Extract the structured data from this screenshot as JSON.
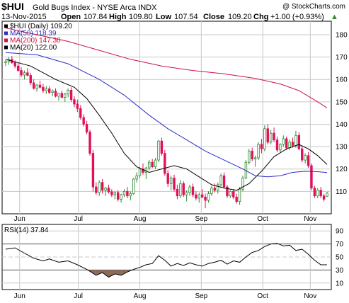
{
  "header": {
    "symbol": "$HUI",
    "name": "Gold Bugs Index - NYSE Arca INDX",
    "credit": "@ StockCharts.com",
    "date": "13-Nov-2015",
    "open_label": "Open",
    "open": "107.84",
    "high_label": "High",
    "high": "109.80",
    "low_label": "Low",
    "low": "107.54",
    "close_label": "Close",
    "close": "109.20",
    "chg_label": "Chg",
    "chg": "+1.00 (+0.93%)",
    "chg_arrow": "▲"
  },
  "colors": {
    "up": "#2e8b2e",
    "down": "#e0105a",
    "ma50": "#2b2bc8",
    "ma200": "#d01040",
    "ma20": "#000000",
    "grid": "#c8c8c8",
    "rsi_line": "#000000",
    "rsi_fill": "#8b6a5a"
  },
  "legend": [
    {
      "label": "$HUI (Daily) 109.20",
      "color": "#000000"
    },
    {
      "label": "MA(50) 118.39",
      "color": "#2b2bc8"
    },
    {
      "label": "MA(200) 147.30",
      "color": "#d01040"
    },
    {
      "label": "MA(20) 122.00",
      "color": "#000000"
    }
  ],
  "price_axis": {
    "labels": [
      "110",
      "120",
      "130",
      "140",
      "150",
      "160",
      "170",
      "180"
    ]
  },
  "rsi_panel": {
    "label": "RSI(14) 37.84",
    "axis_labels": [
      "10",
      "30",
      "50",
      "70",
      "90"
    ]
  },
  "month_labels": [
    "Jun",
    "Jul",
    "Aug",
    "Sep",
    "Oct",
    "Nov"
  ],
  "chart_data": [
    {
      "type": "candlestick",
      "title": "$HUI (Daily) 109.20",
      "ylim": [
        100,
        186
      ],
      "x": [
        "Jun",
        "Jul",
        "Aug",
        "Sep",
        "Oct",
        "Nov"
      ],
      "ohlc": [
        [
          167.5,
          169.0,
          166.0,
          168.0
        ],
        [
          168.0,
          170.0,
          166.5,
          169.0
        ],
        [
          169.0,
          170.5,
          167.0,
          167.5
        ],
        [
          167.5,
          168.5,
          165.0,
          166.0
        ],
        [
          166.0,
          167.5,
          163.5,
          164.0
        ],
        [
          164.0,
          165.5,
          161.0,
          162.0
        ],
        [
          162.0,
          164.0,
          160.0,
          163.0
        ],
        [
          163.0,
          165.0,
          161.5,
          161.8
        ],
        [
          161.8,
          163.0,
          157.5,
          158.5
        ],
        [
          158.5,
          160.0,
          155.5,
          156.0
        ],
        [
          156.0,
          158.0,
          154.5,
          157.5
        ],
        [
          157.5,
          159.5,
          156.0,
          156.5
        ],
        [
          156.5,
          158.0,
          154.0,
          155.0
        ],
        [
          155.0,
          157.0,
          153.5,
          155.8
        ],
        [
          155.8,
          157.0,
          153.5,
          154.2
        ],
        [
          154.2,
          155.5,
          152.5,
          154.8
        ],
        [
          154.8,
          156.0,
          152.0,
          152.5
        ],
        [
          152.5,
          154.0,
          150.5,
          153.8
        ],
        [
          153.8,
          155.0,
          151.5,
          152.0
        ],
        [
          152.0,
          154.0,
          150.0,
          153.5
        ],
        [
          153.5,
          156.0,
          152.0,
          155.2
        ],
        [
          155.2,
          156.5,
          150.0,
          151.0
        ],
        [
          151.0,
          152.5,
          147.5,
          149.0
        ],
        [
          149.0,
          151.0,
          145.5,
          147.0
        ],
        [
          147.0,
          148.5,
          142.0,
          143.0
        ],
        [
          143.0,
          144.5,
          139.0,
          140.0
        ],
        [
          140.0,
          141.5,
          135.5,
          136.5
        ],
        [
          136.5,
          137.5,
          126.0,
          127.0
        ],
        [
          127.0,
          128.5,
          110.0,
          112.0
        ],
        [
          112.0,
          114.0,
          108.5,
          109.5
        ],
        [
          109.5,
          115.0,
          108.0,
          114.0
        ],
        [
          114.0,
          115.5,
          109.0,
          110.5
        ],
        [
          110.5,
          112.0,
          108.0,
          111.5
        ],
        [
          111.5,
          113.0,
          109.0,
          109.8
        ],
        [
          109.8,
          111.0,
          107.5,
          108.5
        ],
        [
          108.5,
          110.0,
          106.5,
          109.5
        ],
        [
          109.5,
          110.5,
          105.5,
          106.5
        ],
        [
          106.5,
          109.0,
          105.0,
          108.5
        ],
        [
          108.5,
          111.0,
          107.5,
          110.0
        ],
        [
          110.0,
          112.0,
          107.0,
          108.0
        ],
        [
          108.0,
          110.0,
          106.0,
          109.0
        ],
        [
          109.0,
          116.0,
          108.5,
          115.5
        ],
        [
          115.5,
          118.5,
          114.0,
          117.0
        ],
        [
          117.0,
          121.0,
          116.0,
          120.0
        ],
        [
          120.0,
          122.5,
          117.5,
          118.5
        ],
        [
          118.5,
          121.0,
          115.5,
          120.5
        ],
        [
          120.5,
          124.0,
          119.5,
          123.0
        ],
        [
          123.0,
          124.5,
          120.5,
          121.0
        ],
        [
          121.0,
          125.0,
          120.0,
          124.0
        ],
        [
          124.0,
          133.0,
          123.0,
          132.5
        ],
        [
          132.5,
          134.0,
          126.0,
          127.0
        ],
        [
          127.0,
          128.5,
          117.0,
          118.0
        ],
        [
          118.0,
          119.5,
          112.0,
          113.5
        ],
        [
          113.5,
          117.0,
          110.5,
          116.0
        ],
        [
          116.0,
          117.5,
          110.0,
          111.0
        ],
        [
          111.0,
          113.0,
          106.5,
          108.0
        ],
        [
          108.0,
          115.0,
          107.0,
          113.5
        ],
        [
          113.5,
          114.5,
          107.5,
          108.5
        ],
        [
          108.5,
          110.5,
          105.5,
          109.5
        ],
        [
          109.5,
          113.0,
          108.0,
          112.0
        ],
        [
          112.0,
          113.5,
          107.5,
          108.5
        ],
        [
          108.5,
          110.0,
          106.0,
          107.0
        ],
        [
          107.0,
          109.5,
          105.0,
          108.5
        ],
        [
          108.5,
          111.0,
          107.0,
          107.5
        ],
        [
          107.5,
          109.0,
          102.5,
          106.0
        ],
        [
          106.0,
          110.0,
          105.0,
          109.0
        ],
        [
          109.0,
          112.5,
          108.0,
          111.5
        ],
        [
          111.5,
          113.5,
          109.5,
          110.5
        ],
        [
          110.5,
          114.0,
          109.0,
          113.0
        ],
        [
          113.0,
          118.0,
          112.0,
          117.0
        ],
        [
          117.0,
          118.5,
          111.5,
          112.0
        ],
        [
          112.0,
          113.0,
          107.0,
          108.0
        ],
        [
          108.0,
          110.5,
          107.0,
          110.0
        ],
        [
          110.0,
          111.0,
          106.5,
          107.5
        ],
        [
          107.5,
          109.0,
          104.5,
          105.5
        ],
        [
          105.5,
          112.0,
          104.0,
          111.0
        ],
        [
          111.0,
          117.0,
          110.0,
          116.0
        ],
        [
          116.0,
          124.0,
          115.5,
          123.0
        ],
        [
          123.0,
          129.0,
          122.0,
          128.0
        ],
        [
          128.0,
          129.5,
          123.5,
          124.5
        ],
        [
          124.5,
          126.0,
          121.0,
          125.0
        ],
        [
          125.0,
          132.0,
          124.0,
          131.0
        ],
        [
          131.0,
          133.5,
          127.0,
          129.0
        ],
        [
          129.0,
          139.5,
          128.0,
          138.0
        ],
        [
          138.0,
          140.0,
          131.0,
          132.0
        ],
        [
          132.0,
          137.5,
          131.0,
          136.0
        ],
        [
          136.0,
          138.5,
          132.0,
          133.0
        ],
        [
          133.0,
          134.5,
          127.5,
          128.5
        ],
        [
          128.5,
          131.5,
          127.5,
          131.0
        ],
        [
          131.0,
          135.0,
          130.0,
          133.5
        ],
        [
          133.5,
          134.5,
          128.5,
          129.5
        ],
        [
          129.5,
          133.0,
          128.5,
          132.0
        ],
        [
          132.0,
          134.0,
          129.5,
          130.5
        ],
        [
          130.5,
          137.0,
          129.5,
          135.0
        ],
        [
          135.0,
          136.5,
          128.5,
          129.0
        ],
        [
          129.0,
          130.5,
          123.0,
          124.0
        ],
        [
          124.0,
          127.0,
          122.5,
          126.0
        ],
        [
          126.0,
          127.5,
          120.5,
          121.5
        ],
        [
          121.5,
          122.5,
          110.5,
          111.5
        ],
        [
          111.5,
          112.5,
          107.0,
          108.0
        ],
        [
          108.0,
          111.5,
          107.0,
          110.5
        ],
        [
          110.5,
          112.0,
          107.0,
          108.0
        ],
        [
          108.0,
          109.0,
          105.5,
          106.5
        ],
        [
          107.84,
          109.8,
          107.54,
          109.2
        ]
      ],
      "series": [
        {
          "name": "MA(20) 122.00",
          "values": [
            [
              0,
              169.0
            ],
            [
              8,
              166.0
            ],
            [
              16,
              160.0
            ],
            [
              22,
              156.5
            ],
            [
              26,
              151.5
            ],
            [
              30,
              144.0
            ],
            [
              34,
              136.0
            ],
            [
              38,
              127.0
            ],
            [
              42,
              121.0
            ],
            [
              46,
              118.5
            ],
            [
              50,
              120.0
            ],
            [
              54,
              121.5
            ],
            [
              58,
              120.0
            ],
            [
              62,
              116.5
            ],
            [
              66,
              113.0
            ],
            [
              70,
              111.5
            ],
            [
              74,
              110.5
            ],
            [
              78,
              113.5
            ],
            [
              82,
              119.0
            ],
            [
              86,
              125.5
            ],
            [
              90,
              129.0
            ],
            [
              94,
              131.0
            ],
            [
              97,
              129.0
            ],
            [
              100,
              126.0
            ],
            [
              103,
              122.0
            ]
          ]
        },
        {
          "name": "MA(50) 118.39",
          "values": [
            [
              0,
              172.0
            ],
            [
              10,
              171.0
            ],
            [
              20,
              167.0
            ],
            [
              30,
              160.0
            ],
            [
              38,
              153.0
            ],
            [
              46,
              144.0
            ],
            [
              52,
              138.0
            ],
            [
              58,
              133.0
            ],
            [
              64,
              128.0
            ],
            [
              70,
              124.0
            ],
            [
              76,
              120.0
            ],
            [
              80,
              117.0
            ],
            [
              84,
              116.5
            ],
            [
              88,
              117.0
            ],
            [
              92,
              118.5
            ],
            [
              96,
              119.0
            ],
            [
              100,
              118.8
            ],
            [
              103,
              118.4
            ]
          ]
        },
        {
          "name": "MA(200) 147.30",
          "values": [
            [
              0,
              183.0
            ],
            [
              10,
              180.0
            ],
            [
              20,
              177.0
            ],
            [
              30,
              173.0
            ],
            [
              40,
              169.0
            ],
            [
              50,
              166.0
            ],
            [
              60,
              164.0
            ],
            [
              70,
              162.5
            ],
            [
              80,
              160.5
            ],
            [
              88,
              158.0
            ],
            [
              94,
              155.0
            ],
            [
              100,
              150.0
            ],
            [
              103,
              147.3
            ]
          ]
        }
      ]
    },
    {
      "type": "line",
      "title": "RSI(14) 37.84",
      "ylim": [
        0,
        100
      ],
      "series": [
        {
          "name": "RSI(14) 37.84",
          "values": [
            [
              0,
              62
            ],
            [
              3,
              64
            ],
            [
              6,
              56
            ],
            [
              9,
              48
            ],
            [
              12,
              44
            ],
            [
              14,
              47
            ],
            [
              17,
              42
            ],
            [
              20,
              44
            ],
            [
              23,
              38
            ],
            [
              26,
              31
            ],
            [
              29,
              22
            ],
            [
              31,
              26
            ],
            [
              33,
              19
            ],
            [
              35,
              24
            ],
            [
              37,
              22
            ],
            [
              39,
              27
            ],
            [
              41,
              31
            ],
            [
              43,
              34
            ],
            [
              45,
              38
            ],
            [
              47,
              40
            ],
            [
              49,
              52
            ],
            [
              51,
              45
            ],
            [
              53,
              36
            ],
            [
              55,
              40
            ],
            [
              57,
              37
            ],
            [
              59,
              41
            ],
            [
              61,
              38
            ],
            [
              63,
              36
            ],
            [
              65,
              40
            ],
            [
              67,
              42
            ],
            [
              69,
              45
            ],
            [
              71,
              39
            ],
            [
              73,
              44
            ],
            [
              75,
              42
            ],
            [
              77,
              50
            ],
            [
              79,
              57
            ],
            [
              81,
              60
            ],
            [
              83,
              66
            ],
            [
              85,
              70
            ],
            [
              87,
              71
            ],
            [
              89,
              67
            ],
            [
              91,
              68
            ],
            [
              93,
              60
            ],
            [
              95,
              62
            ],
            [
              97,
              54
            ],
            [
              99,
              45
            ],
            [
              101,
              38
            ],
            [
              103,
              38
            ]
          ]
        }
      ]
    }
  ]
}
